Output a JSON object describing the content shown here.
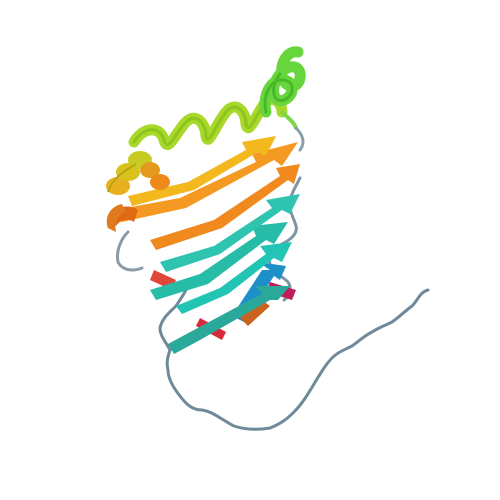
{
  "image": {
    "subject": "protein-ribbon-cartoon",
    "background": "#ffffff",
    "palette": {
      "coil": "#6e8a9a",
      "coil_light": "#9aa8b4",
      "blue": "#1e90c8",
      "cyan": "#22c4b4",
      "teal": "#2aa89a",
      "green": "#66d63c",
      "yellow_green": "#a8d82a",
      "yellow": "#e6c81e",
      "orange": "#f08a1e",
      "dark_orange": "#e06a14",
      "red": "#d82a3a",
      "crimson": "#c01e5a"
    }
  }
}
